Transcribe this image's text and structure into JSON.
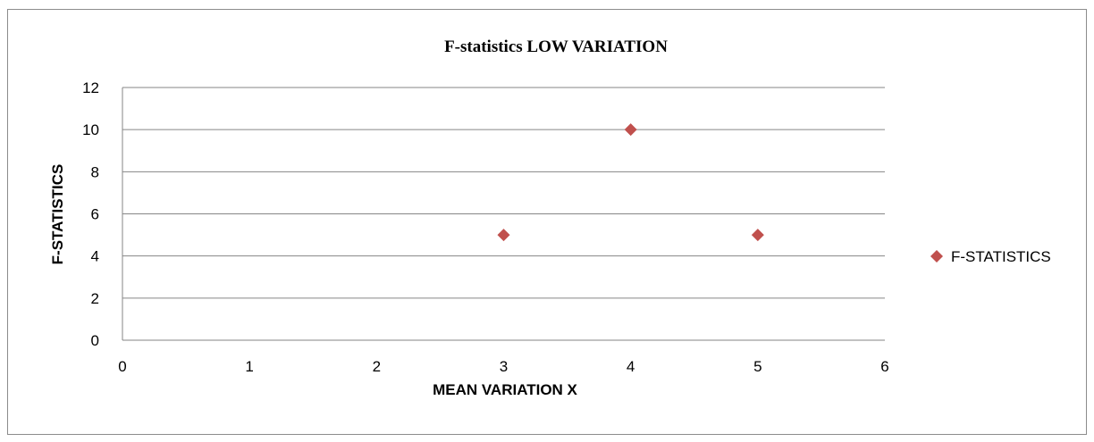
{
  "chart_data": {
    "type": "scatter",
    "title": "F-statistics LOW   VARIATION",
    "xlabel": "MEAN VARIATION  X",
    "ylabel": "F-STATISTICS",
    "xlim": [
      0,
      6
    ],
    "ylim": [
      0,
      12
    ],
    "x_ticks": [
      0,
      1,
      2,
      3,
      4,
      5,
      6
    ],
    "y_ticks": [
      0,
      2,
      4,
      6,
      8,
      10,
      12
    ],
    "grid": "horizontal",
    "legend_position": "right",
    "series": [
      {
        "name": "F-STATISTICS",
        "color": "#C0504D",
        "marker": "diamond",
        "points": [
          {
            "x": 3,
            "y": 5
          },
          {
            "x": 4,
            "y": 10
          },
          {
            "x": 5,
            "y": 5
          }
        ]
      }
    ]
  },
  "colors": {
    "gridline": "#868686",
    "frame_border": "#8c8c8c"
  }
}
